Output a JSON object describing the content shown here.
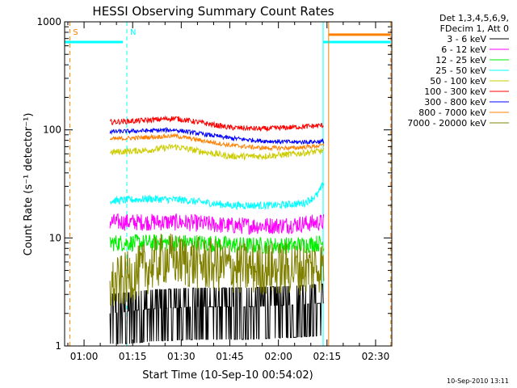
{
  "chart_data": {
    "type": "line",
    "title": "HESSI Observing Summary Count Rates",
    "xlabel": "Start Time (10-Sep-10 00:54:02)",
    "ylabel": "Count Rate (s⁻¹ detector⁻¹)",
    "yscale": "log",
    "ylim": [
      1,
      1000
    ],
    "xlim_minutes": [
      54.0,
      155.0
    ],
    "x_unit": "minutes after 00:00 UT on 10-Sep-10",
    "x_ticks": [
      {
        "value": 60,
        "label": "01:00"
      },
      {
        "value": 75,
        "label": "01:15"
      },
      {
        "value": 90,
        "label": "01:30"
      },
      {
        "value": 105,
        "label": "01:45"
      },
      {
        "value": 120,
        "label": "02:00"
      },
      {
        "value": 135,
        "label": "02:15"
      },
      {
        "value": 150,
        "label": "02:30"
      }
    ],
    "y_ticks": [
      {
        "value": 1,
        "label": "1"
      },
      {
        "value": 10,
        "label": "10"
      },
      {
        "value": 100,
        "label": "100"
      },
      {
        "value": 1000,
        "label": "1000"
      }
    ],
    "legend_header": [
      "Det 1,3,4,5,6,9,",
      "FDecim 1, Att 0"
    ],
    "legend_position": "right",
    "series": [
      {
        "name": "3 - 6 keV",
        "color": "#000000",
        "noise": 0.55,
        "data": [
          [
            68,
            2.0
          ],
          [
            80,
            2.2
          ],
          [
            95,
            2.3
          ],
          [
            110,
            2.3
          ],
          [
            125,
            2.4
          ],
          [
            134,
            2.5
          ]
        ]
      },
      {
        "name": "6 - 12 keV",
        "color": "#ff00ff",
        "noise": 0.08,
        "data": [
          [
            68,
            14
          ],
          [
            75,
            14
          ],
          [
            90,
            14
          ],
          [
            105,
            13
          ],
          [
            120,
            13
          ],
          [
            134,
            14
          ]
        ]
      },
      {
        "name": "12 - 25 keV",
        "color": "#00ee00",
        "noise": 0.08,
        "data": [
          [
            68,
            9
          ],
          [
            80,
            9
          ],
          [
            95,
            9
          ],
          [
            110,
            8.5
          ],
          [
            125,
            8.5
          ],
          [
            134,
            9
          ]
        ]
      },
      {
        "name": "25 - 50 keV",
        "color": "#00ffff",
        "noise": 0.035,
        "data": [
          [
            68,
            22
          ],
          [
            80,
            23
          ],
          [
            90,
            22.5
          ],
          [
            105,
            20
          ],
          [
            120,
            20
          ],
          [
            128,
            21
          ],
          [
            132,
            25
          ],
          [
            134,
            32
          ]
        ]
      },
      {
        "name": "50 - 100 keV",
        "color": "#cccc00",
        "noise": 0.03,
        "data": [
          [
            68,
            62
          ],
          [
            80,
            65
          ],
          [
            88,
            70
          ],
          [
            95,
            64
          ],
          [
            105,
            57
          ],
          [
            115,
            57
          ],
          [
            125,
            60
          ],
          [
            134,
            64
          ]
        ]
      },
      {
        "name": "100 - 300 keV",
        "color": "#ff0000",
        "noise": 0.025,
        "data": [
          [
            68,
            118
          ],
          [
            78,
            122
          ],
          [
            88,
            128
          ],
          [
            95,
            118
          ],
          [
            105,
            105
          ],
          [
            115,
            102
          ],
          [
            125,
            106
          ],
          [
            134,
            110
          ]
        ]
      },
      {
        "name": "300 - 800 keV",
        "color": "#0000ff",
        "noise": 0.02,
        "data": [
          [
            68,
            96
          ],
          [
            78,
            98
          ],
          [
            88,
            100
          ],
          [
            95,
            93
          ],
          [
            105,
            84
          ],
          [
            115,
            79
          ],
          [
            125,
            77
          ],
          [
            134,
            78
          ]
        ]
      },
      {
        "name": "800 - 7000 keV",
        "color": "#ff8000",
        "noise": 0.02,
        "data": [
          [
            68,
            82
          ],
          [
            78,
            85
          ],
          [
            88,
            88
          ],
          [
            95,
            81
          ],
          [
            105,
            72
          ],
          [
            115,
            68
          ],
          [
            125,
            68
          ],
          [
            134,
            72
          ]
        ]
      },
      {
        "name": "7000 - 20000 keV",
        "color": "#808000",
        "noise": 0.25,
        "data": [
          [
            68,
            3.5
          ],
          [
            75,
            4.5
          ],
          [
            85,
            6.5
          ],
          [
            95,
            5.8
          ],
          [
            110,
            5.2
          ],
          [
            125,
            5.2
          ],
          [
            134,
            5.5
          ]
        ]
      }
    ],
    "attenuator_segments": [
      {
        "color": "#00ffff",
        "x": [
          54.0,
          72.0
        ],
        "y": 650
      },
      {
        "color": "#00ffff",
        "x": [
          133.8,
          154.7
        ],
        "y": 650
      },
      {
        "color": "#ff8000",
        "x": [
          135.5,
          154.7
        ],
        "y": 760
      }
    ],
    "markers": [
      {
        "label": "S",
        "x": 55.6,
        "color": "#ff8000",
        "dashed": true
      },
      {
        "label": "N",
        "x": 73.2,
        "color": "#00ffff",
        "dashed": true
      },
      {
        "label": "",
        "x": 54.0,
        "color": "#00ffff",
        "dashed": false
      },
      {
        "label": "",
        "x": 133.8,
        "color": "#00ffff",
        "dashed": false
      },
      {
        "label": "",
        "x": 135.5,
        "color": "#ff8000",
        "dashed": false
      },
      {
        "label": "",
        "x": 154.7,
        "color": "#ff8000",
        "dashed": true
      }
    ]
  },
  "footer": {
    "timestamp": "10-Sep-2010 13:11"
  }
}
